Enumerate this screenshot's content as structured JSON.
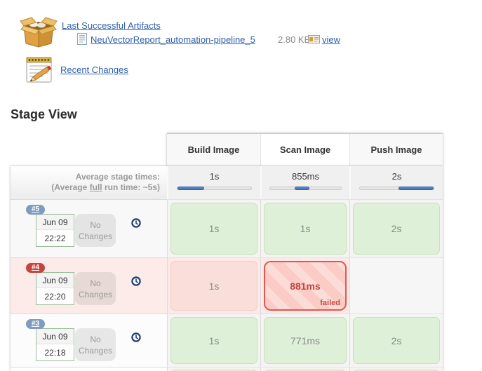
{
  "artifacts": {
    "title": "Last Successful Artifacts",
    "file_name": "NeuVectorReport_automation-pipeline_5",
    "file_size": "2.80 KB",
    "view_label": "view"
  },
  "changes": {
    "title": "Recent Changes"
  },
  "stage_view": {
    "title": "Stage View",
    "columns": [
      "Build Image",
      "Scan Image",
      "Push Image"
    ],
    "average": {
      "label_line1": "Average stage times:",
      "label_line2_prefix": "(Average ",
      "label_line2_link": "full",
      "label_line2_suffix": " run time: ~5s)",
      "stages": [
        {
          "time": "1s",
          "bar_left_pct": 0,
          "bar_width_pct": 36
        },
        {
          "time": "855ms",
          "bar_left_pct": 35,
          "bar_width_pct": 20
        },
        {
          "time": "2s",
          "bar_left_pct": 52,
          "bar_width_pct": 48
        }
      ]
    },
    "runs": [
      {
        "id": "#5",
        "status": "success",
        "date": "Jun 09",
        "time": "22:22",
        "changes_line1": "No",
        "changes_line2": "Changes",
        "cells": [
          {
            "time": "1s"
          },
          {
            "time": "1s"
          },
          {
            "time": "2s"
          }
        ]
      },
      {
        "id": "#4",
        "status": "failed",
        "date": "Jun 09",
        "time": "22:20",
        "changes_line1": "No",
        "changes_line2": "Changes",
        "cells": [
          {
            "time": "1s"
          },
          {
            "time": "881ms",
            "label": "failed"
          },
          {
            "time": ""
          }
        ]
      },
      {
        "id": "#3",
        "status": "success",
        "date": "Jun 09",
        "time": "22:18",
        "changes_line1": "No",
        "changes_line2": "Changes",
        "cells": [
          {
            "time": "1s"
          },
          {
            "time": "771ms"
          },
          {
            "time": "2s"
          }
        ]
      }
    ],
    "colors": {
      "link_blue": "#2e5fa8",
      "bar_blue": "#4d7fbe",
      "success_green": "#def0d7",
      "fail_red": "#e4574e",
      "fail_row_pink": "#fcebe8",
      "badge_blue": "#7d9cc0",
      "badge_red": "#c5443e"
    }
  }
}
